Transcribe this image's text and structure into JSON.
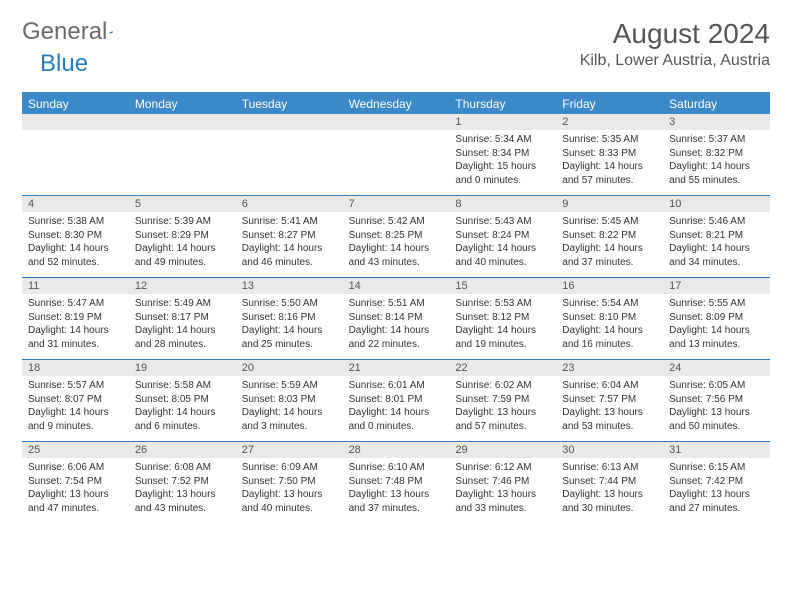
{
  "logo": {
    "part1": "General",
    "part2": "Blue"
  },
  "title": "August 2024",
  "location": "Kilb, Lower Austria, Austria",
  "colors": {
    "header_bg": "#3b89c9",
    "header_border": "#2b7bbf",
    "daynum_bg": "#e9e9e9",
    "text": "#333333",
    "title_text": "#555555"
  },
  "day_names": [
    "Sunday",
    "Monday",
    "Tuesday",
    "Wednesday",
    "Thursday",
    "Friday",
    "Saturday"
  ],
  "weeks": [
    [
      {
        "n": "",
        "sr": "",
        "ss": "",
        "dl": ""
      },
      {
        "n": "",
        "sr": "",
        "ss": "",
        "dl": ""
      },
      {
        "n": "",
        "sr": "",
        "ss": "",
        "dl": ""
      },
      {
        "n": "",
        "sr": "",
        "ss": "",
        "dl": ""
      },
      {
        "n": "1",
        "sr": "Sunrise: 5:34 AM",
        "ss": "Sunset: 8:34 PM",
        "dl": "Daylight: 15 hours and 0 minutes."
      },
      {
        "n": "2",
        "sr": "Sunrise: 5:35 AM",
        "ss": "Sunset: 8:33 PM",
        "dl": "Daylight: 14 hours and 57 minutes."
      },
      {
        "n": "3",
        "sr": "Sunrise: 5:37 AM",
        "ss": "Sunset: 8:32 PM",
        "dl": "Daylight: 14 hours and 55 minutes."
      }
    ],
    [
      {
        "n": "4",
        "sr": "Sunrise: 5:38 AM",
        "ss": "Sunset: 8:30 PM",
        "dl": "Daylight: 14 hours and 52 minutes."
      },
      {
        "n": "5",
        "sr": "Sunrise: 5:39 AM",
        "ss": "Sunset: 8:29 PM",
        "dl": "Daylight: 14 hours and 49 minutes."
      },
      {
        "n": "6",
        "sr": "Sunrise: 5:41 AM",
        "ss": "Sunset: 8:27 PM",
        "dl": "Daylight: 14 hours and 46 minutes."
      },
      {
        "n": "7",
        "sr": "Sunrise: 5:42 AM",
        "ss": "Sunset: 8:25 PM",
        "dl": "Daylight: 14 hours and 43 minutes."
      },
      {
        "n": "8",
        "sr": "Sunrise: 5:43 AM",
        "ss": "Sunset: 8:24 PM",
        "dl": "Daylight: 14 hours and 40 minutes."
      },
      {
        "n": "9",
        "sr": "Sunrise: 5:45 AM",
        "ss": "Sunset: 8:22 PM",
        "dl": "Daylight: 14 hours and 37 minutes."
      },
      {
        "n": "10",
        "sr": "Sunrise: 5:46 AM",
        "ss": "Sunset: 8:21 PM",
        "dl": "Daylight: 14 hours and 34 minutes."
      }
    ],
    [
      {
        "n": "11",
        "sr": "Sunrise: 5:47 AM",
        "ss": "Sunset: 8:19 PM",
        "dl": "Daylight: 14 hours and 31 minutes."
      },
      {
        "n": "12",
        "sr": "Sunrise: 5:49 AM",
        "ss": "Sunset: 8:17 PM",
        "dl": "Daylight: 14 hours and 28 minutes."
      },
      {
        "n": "13",
        "sr": "Sunrise: 5:50 AM",
        "ss": "Sunset: 8:16 PM",
        "dl": "Daylight: 14 hours and 25 minutes."
      },
      {
        "n": "14",
        "sr": "Sunrise: 5:51 AM",
        "ss": "Sunset: 8:14 PM",
        "dl": "Daylight: 14 hours and 22 minutes."
      },
      {
        "n": "15",
        "sr": "Sunrise: 5:53 AM",
        "ss": "Sunset: 8:12 PM",
        "dl": "Daylight: 14 hours and 19 minutes."
      },
      {
        "n": "16",
        "sr": "Sunrise: 5:54 AM",
        "ss": "Sunset: 8:10 PM",
        "dl": "Daylight: 14 hours and 16 minutes."
      },
      {
        "n": "17",
        "sr": "Sunrise: 5:55 AM",
        "ss": "Sunset: 8:09 PM",
        "dl": "Daylight: 14 hours and 13 minutes."
      }
    ],
    [
      {
        "n": "18",
        "sr": "Sunrise: 5:57 AM",
        "ss": "Sunset: 8:07 PM",
        "dl": "Daylight: 14 hours and 9 minutes."
      },
      {
        "n": "19",
        "sr": "Sunrise: 5:58 AM",
        "ss": "Sunset: 8:05 PM",
        "dl": "Daylight: 14 hours and 6 minutes."
      },
      {
        "n": "20",
        "sr": "Sunrise: 5:59 AM",
        "ss": "Sunset: 8:03 PM",
        "dl": "Daylight: 14 hours and 3 minutes."
      },
      {
        "n": "21",
        "sr": "Sunrise: 6:01 AM",
        "ss": "Sunset: 8:01 PM",
        "dl": "Daylight: 14 hours and 0 minutes."
      },
      {
        "n": "22",
        "sr": "Sunrise: 6:02 AM",
        "ss": "Sunset: 7:59 PM",
        "dl": "Daylight: 13 hours and 57 minutes."
      },
      {
        "n": "23",
        "sr": "Sunrise: 6:04 AM",
        "ss": "Sunset: 7:57 PM",
        "dl": "Daylight: 13 hours and 53 minutes."
      },
      {
        "n": "24",
        "sr": "Sunrise: 6:05 AM",
        "ss": "Sunset: 7:56 PM",
        "dl": "Daylight: 13 hours and 50 minutes."
      }
    ],
    [
      {
        "n": "25",
        "sr": "Sunrise: 6:06 AM",
        "ss": "Sunset: 7:54 PM",
        "dl": "Daylight: 13 hours and 47 minutes."
      },
      {
        "n": "26",
        "sr": "Sunrise: 6:08 AM",
        "ss": "Sunset: 7:52 PM",
        "dl": "Daylight: 13 hours and 43 minutes."
      },
      {
        "n": "27",
        "sr": "Sunrise: 6:09 AM",
        "ss": "Sunset: 7:50 PM",
        "dl": "Daylight: 13 hours and 40 minutes."
      },
      {
        "n": "28",
        "sr": "Sunrise: 6:10 AM",
        "ss": "Sunset: 7:48 PM",
        "dl": "Daylight: 13 hours and 37 minutes."
      },
      {
        "n": "29",
        "sr": "Sunrise: 6:12 AM",
        "ss": "Sunset: 7:46 PM",
        "dl": "Daylight: 13 hours and 33 minutes."
      },
      {
        "n": "30",
        "sr": "Sunrise: 6:13 AM",
        "ss": "Sunset: 7:44 PM",
        "dl": "Daylight: 13 hours and 30 minutes."
      },
      {
        "n": "31",
        "sr": "Sunrise: 6:15 AM",
        "ss": "Sunset: 7:42 PM",
        "dl": "Daylight: 13 hours and 27 minutes."
      }
    ]
  ]
}
